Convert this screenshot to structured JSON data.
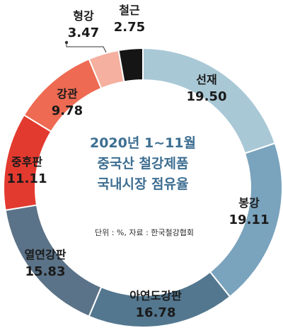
{
  "chart_data": {
    "type": "pie",
    "title_lines": [
      "2020년 1~11월",
      "중국산 철강제품",
      "국내시장 점유율"
    ],
    "unit_note": "단위 : %, 자료 : 한국철강협회",
    "categories": [
      "선재",
      "봉강",
      "아연도강판",
      "열연강판",
      "중후판",
      "강관",
      "형강",
      "철근"
    ],
    "values": [
      19.5,
      19.11,
      16.78,
      15.83,
      11.11,
      9.78,
      3.47,
      2.75
    ],
    "value_labels": [
      "19.50",
      "19.11",
      "16.78",
      "15.83",
      "11.11",
      "9.78",
      "3.47",
      "2.75"
    ],
    "colors": [
      "#a9c8d6",
      "#7aa3bd",
      "#53778f",
      "#5b7388",
      "#e33a2f",
      "#ee6a52",
      "#f5b09f",
      "#151515"
    ],
    "donut": true,
    "legend": "none"
  }
}
